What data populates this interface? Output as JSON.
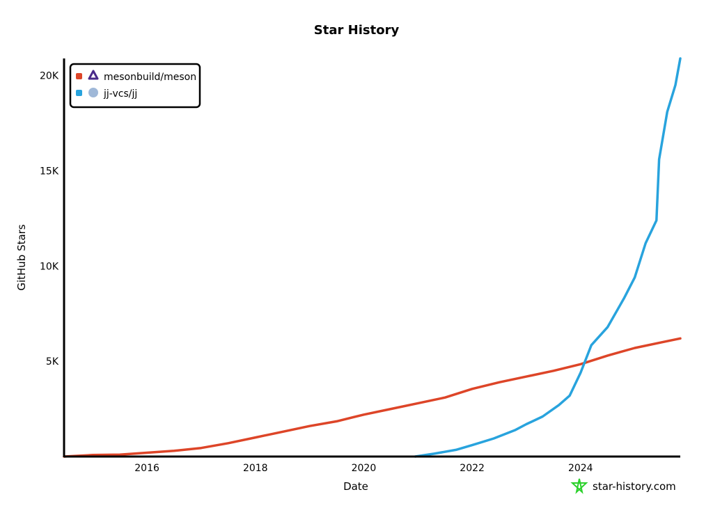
{
  "chart_data": {
    "type": "line",
    "title": "Star History",
    "xlabel": "Date",
    "ylabel": "GitHub Stars",
    "xlim": [
      2014.47,
      2025.84
    ],
    "ylim": [
      0,
      20900
    ],
    "x_ticks": [
      2016,
      2018,
      2020,
      2022,
      2024
    ],
    "y_ticks": [
      {
        "value": 5000,
        "label": "5K"
      },
      {
        "value": 10000,
        "label": "10K"
      },
      {
        "value": 15000,
        "label": "15K"
      },
      {
        "value": 20000,
        "label": "20K"
      }
    ],
    "legend_position": "top-left",
    "series": [
      {
        "name": "mesonbuild/meson",
        "color": "#dd4528",
        "icon": "meson-logo-icon",
        "points": [
          [
            2014.47,
            0
          ],
          [
            2015,
            80
          ],
          [
            2015.5,
            100
          ],
          [
            2016,
            200
          ],
          [
            2016.5,
            300
          ],
          [
            2017,
            450
          ],
          [
            2017.5,
            700
          ],
          [
            2018,
            1000
          ],
          [
            2018.5,
            1300
          ],
          [
            2019,
            1600
          ],
          [
            2019.5,
            1850
          ],
          [
            2020,
            2200
          ],
          [
            2020.5,
            2500
          ],
          [
            2021,
            2800
          ],
          [
            2021.5,
            3100
          ],
          [
            2022,
            3550
          ],
          [
            2022.5,
            3900
          ],
          [
            2023,
            4200
          ],
          [
            2023.5,
            4500
          ],
          [
            2024,
            4850
          ],
          [
            2024.5,
            5300
          ],
          [
            2025,
            5700
          ],
          [
            2025.5,
            6000
          ],
          [
            2025.84,
            6200
          ]
        ]
      },
      {
        "name": "jj-vcs/jj",
        "color": "#28a3dd",
        "icon": "jj-avatar-icon",
        "points": [
          [
            2020.95,
            0
          ],
          [
            2021.3,
            150
          ],
          [
            2021.7,
            350
          ],
          [
            2022,
            600
          ],
          [
            2022.4,
            950
          ],
          [
            2022.8,
            1400
          ],
          [
            2023,
            1700
          ],
          [
            2023.3,
            2100
          ],
          [
            2023.6,
            2700
          ],
          [
            2023.8,
            3200
          ],
          [
            2024,
            4400
          ],
          [
            2024.2,
            5850
          ],
          [
            2024.5,
            6800
          ],
          [
            2024.8,
            8300
          ],
          [
            2025,
            9400
          ],
          [
            2025.2,
            11200
          ],
          [
            2025.4,
            12400
          ],
          [
            2025.45,
            15600
          ],
          [
            2025.6,
            18100
          ],
          [
            2025.75,
            19500
          ],
          [
            2025.84,
            20900
          ]
        ]
      }
    ]
  },
  "watermark": "star-history.com"
}
